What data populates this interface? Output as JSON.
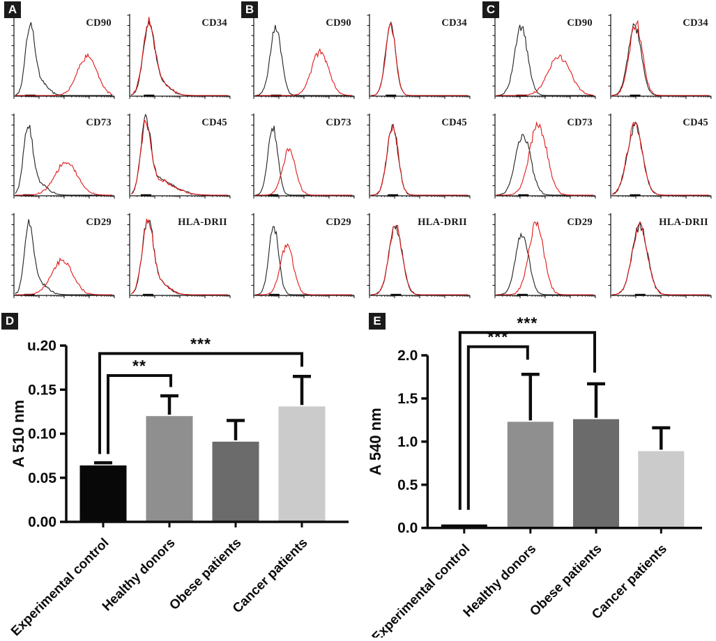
{
  "colors": {
    "red_curve": "#e01818",
    "black_curve": "#1f1f1f",
    "axis": "#0d0d0d"
  },
  "histogram_panels": [
    {
      "label": "A",
      "plots": [
        {
          "marker": "CD90",
          "black": [
            {
              "c": 16,
              "w": 4.5,
              "h": 92
            },
            {
              "c": 27,
              "w": 7,
              "h": 18
            }
          ],
          "red": [
            {
              "c": 73,
              "w": 9.5,
              "h": 52
            }
          ]
        },
        {
          "marker": "CD34",
          "black": [
            {
              "c": 19,
              "w": 5.5,
              "h": 92
            },
            {
              "c": 31,
              "w": 9,
              "h": 16
            }
          ],
          "red": [
            {
              "c": 19,
              "w": 5.8,
              "h": 95
            },
            {
              "c": 32,
              "w": 9,
              "h": 15
            }
          ]
        },
        {
          "marker": "CD73",
          "black": [
            {
              "c": 14,
              "w": 4.5,
              "h": 90
            },
            {
              "c": 25,
              "w": 8,
              "h": 16
            }
          ],
          "red": [
            {
              "c": 52,
              "w": 11,
              "h": 44
            }
          ]
        },
        {
          "marker": "CD45",
          "black": [
            {
              "c": 16,
              "w": 5,
              "h": 95
            },
            {
              "c": 29,
              "w": 9,
              "h": 18
            },
            {
              "c": 44,
              "w": 11,
              "h": 7
            }
          ],
          "red": [
            {
              "c": 16,
              "w": 5,
              "h": 93
            },
            {
              "c": 30,
              "w": 9,
              "h": 17
            },
            {
              "c": 46,
              "w": 11,
              "h": 6
            }
          ]
        },
        {
          "marker": "CD29",
          "black": [
            {
              "c": 15,
              "w": 4.5,
              "h": 91
            },
            {
              "c": 26,
              "w": 8,
              "h": 15
            }
          ],
          "red": [
            {
              "c": 48,
              "w": 10.5,
              "h": 46
            }
          ]
        },
        {
          "marker": "HLA-DRII",
          "black": [
            {
              "c": 18,
              "w": 5.5,
              "h": 95
            },
            {
              "c": 30,
              "w": 9,
              "h": 15
            }
          ],
          "red": [
            {
              "c": 18,
              "w": 5.5,
              "h": 93
            },
            {
              "c": 31,
              "w": 9,
              "h": 14
            }
          ]
        }
      ]
    },
    {
      "label": "B",
      "plots": [
        {
          "marker": "CD90",
          "black": [
            {
              "c": 22,
              "w": 5.5,
              "h": 92
            }
          ],
          "red": [
            {
              "c": 66,
              "w": 8.5,
              "h": 58
            }
          ]
        },
        {
          "marker": "CD34",
          "black": [
            {
              "c": 21,
              "w": 5,
              "h": 95
            }
          ],
          "red": [
            {
              "c": 21,
              "w": 5,
              "h": 93
            }
          ]
        },
        {
          "marker": "CD73",
          "black": [
            {
              "c": 19,
              "w": 4.8,
              "h": 90
            }
          ],
          "red": [
            {
              "c": 35,
              "w": 6.5,
              "h": 60
            }
          ]
        },
        {
          "marker": "CD45",
          "black": [
            {
              "c": 23,
              "w": 5.5,
              "h": 92
            }
          ],
          "red": [
            {
              "c": 23,
              "w": 5.5,
              "h": 92
            }
          ]
        },
        {
          "marker": "CD29",
          "black": [
            {
              "c": 20,
              "w": 4.8,
              "h": 92
            }
          ],
          "red": [
            {
              "c": 33,
              "w": 6.5,
              "h": 66
            }
          ]
        },
        {
          "marker": "HLA-DRII",
          "black": [
            {
              "c": 26,
              "w": 6.5,
              "h": 92
            }
          ],
          "red": [
            {
              "c": 26,
              "w": 6.5,
              "h": 92
            }
          ]
        }
      ]
    },
    {
      "label": "C",
      "plots": [
        {
          "marker": "CD90",
          "black": [
            {
              "c": 26,
              "w": 6.5,
              "h": 90
            }
          ],
          "red": [
            {
              "c": 64,
              "w": 11,
              "h": 52
            }
          ]
        },
        {
          "marker": "CD34",
          "black": [
            {
              "c": 24,
              "w": 6.5,
              "h": 92
            }
          ],
          "red": [
            {
              "c": 25,
              "w": 6.5,
              "h": 96
            }
          ]
        },
        {
          "marker": "CD73",
          "black": [
            {
              "c": 28,
              "w": 7.5,
              "h": 80
            }
          ],
          "red": [
            {
              "c": 43,
              "w": 8.5,
              "h": 95
            }
          ]
        },
        {
          "marker": "CD45",
          "black": [
            {
              "c": 24,
              "w": 7.5,
              "h": 92
            }
          ],
          "red": [
            {
              "c": 24,
              "w": 7.5,
              "h": 92
            }
          ]
        },
        {
          "marker": "CD29",
          "black": [
            {
              "c": 27,
              "w": 6.5,
              "h": 82
            }
          ],
          "red": [
            {
              "c": 41,
              "w": 7.5,
              "h": 96
            }
          ]
        },
        {
          "marker": "HLA-DRII",
          "black": [
            {
              "c": 29,
              "w": 7.5,
              "h": 92
            }
          ],
          "red": [
            {
              "c": 29,
              "w": 7.5,
              "h": 93
            }
          ]
        }
      ]
    }
  ],
  "chart_data": [
    {
      "panel": "D",
      "type": "bar",
      "ylabel": "A 510 nm",
      "categories": [
        "Experimental control",
        "Healthy donors",
        "Obese patients",
        "Cancer patients"
      ],
      "values": [
        0.064,
        0.12,
        0.091,
        0.131
      ],
      "errors": [
        0.003,
        0.023,
        0.024,
        0.034
      ],
      "bar_colors": [
        "#080808",
        "#8f8f8f",
        "#6b6b6b",
        "#cbcbcb"
      ],
      "ylim": [
        0,
        0.2
      ],
      "ytick_labels": [
        "0.00",
        "0.05",
        "0.10",
        "0.15",
        "u.20"
      ],
      "ytick_values": [
        0,
        0.05,
        0.1,
        0.15,
        0.2
      ],
      "grid": false,
      "significance": [
        {
          "from": 0,
          "to": 1,
          "label": "**",
          "y": 0.166,
          "drop_left": 0.077,
          "drop_right": 0.153
        },
        {
          "from": 0,
          "to": 3,
          "label": "***",
          "y": 0.191,
          "drop_left": 0.077,
          "drop_right": 0.176
        }
      ]
    },
    {
      "panel": "E",
      "type": "bar",
      "ylabel": "A 540 nm",
      "categories": [
        "Experimental control",
        "Healthy donors",
        "Obese patients",
        "Cancer patients"
      ],
      "values": [
        0.04,
        1.23,
        1.26,
        0.89
      ],
      "errors": [
        0,
        0.55,
        0.41,
        0.27
      ],
      "bar_colors": [
        "#080808",
        "#8f8f8f",
        "#6b6b6b",
        "#cbcbcb"
      ],
      "ylim": [
        0,
        2.0
      ],
      "ytick_labels": [
        "0.0",
        "0.5",
        "1.0",
        "1.5",
        "2.0"
      ],
      "ytick_values": [
        0,
        0.5,
        1.0,
        1.5,
        2.0
      ],
      "grid": false,
      "significance": [
        {
          "from": 0,
          "to": 1,
          "label": "***",
          "y": 2.1,
          "drop_left": 0.21,
          "drop_right": 1.95
        },
        {
          "from": 0,
          "to": 2,
          "label": "***",
          "y": 2.264,
          "drop_left": 0.21,
          "drop_right": 1.8
        }
      ]
    }
  ]
}
